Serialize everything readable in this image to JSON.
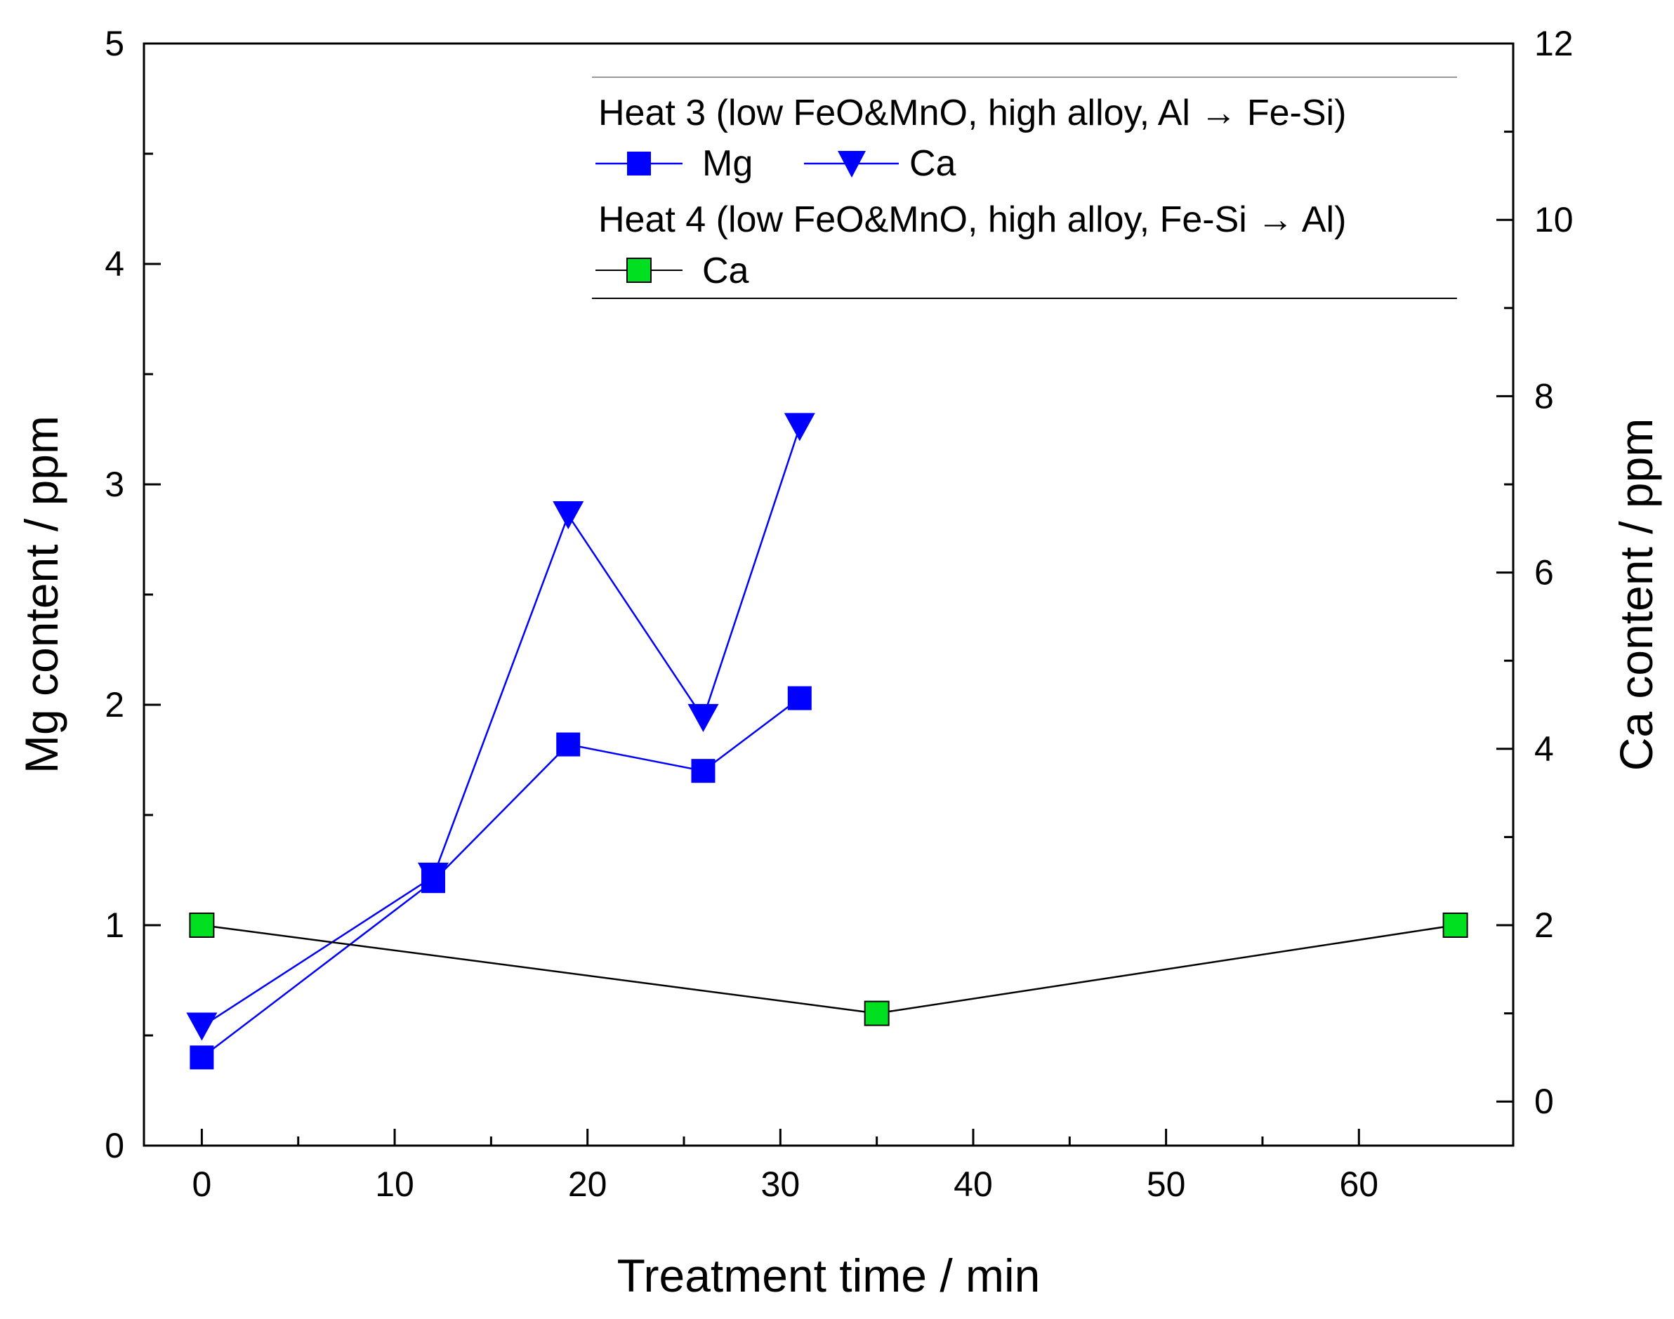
{
  "chart_data": {
    "type": "line",
    "xlabel": "Treatment time / min",
    "ylabel": "Mg content / ppm",
    "y2label": "Ca content / ppm",
    "xlim": [
      -3,
      68
    ],
    "ylim": [
      0,
      5
    ],
    "y2lim": [
      -0.5,
      12
    ],
    "xticks": [
      0,
      10,
      20,
      30,
      40,
      50,
      60
    ],
    "yticks": [
      0,
      1,
      2,
      3,
      4,
      5
    ],
    "y2ticks": [
      0,
      2,
      4,
      6,
      8,
      10,
      12
    ],
    "series": [
      {
        "name": "Mg",
        "group": "Heat 3 (low FeO&MnO, high alloy, Al → Fe-Si)",
        "axis": "left",
        "marker": "square",
        "color": "#0000ff",
        "fill": "#0000ff",
        "line_color": "#0000ff",
        "x": [
          0,
          12,
          19,
          26,
          31
        ],
        "y": [
          0.4,
          1.2,
          1.82,
          1.7,
          2.03
        ]
      },
      {
        "name": "Ca",
        "group": "Heat 3 (low FeO&MnO, high alloy, Al → Fe-Si)",
        "axis": "right",
        "marker": "triangle-down",
        "color": "#0000ff",
        "fill": "#0000ff",
        "line_color": "#0000ff",
        "x": [
          0,
          12,
          19,
          26,
          31
        ],
        "y": [
          0.85,
          2.55,
          6.65,
          4.35,
          7.65
        ]
      },
      {
        "name": "Ca",
        "group": "Heat 4 (low FeO&MnO, high alloy, Fe-Si → Al)",
        "axis": "right",
        "marker": "square",
        "color": "#00e020",
        "fill": "#00e020",
        "line_color": "#000000",
        "x": [
          0,
          35,
          65
        ],
        "y": [
          2,
          1,
          2
        ]
      }
    ],
    "legend": {
      "position": "top-right",
      "heat3_title": "Heat 3 (low FeO&MnO, high alloy, Al → Fe-Si)",
      "heat3_mg": "Mg",
      "heat3_ca": "Ca",
      "heat4_title": "Heat 4 (low FeO&MnO, high alloy, Fe-Si → Al)",
      "heat4_ca": "Ca"
    }
  }
}
